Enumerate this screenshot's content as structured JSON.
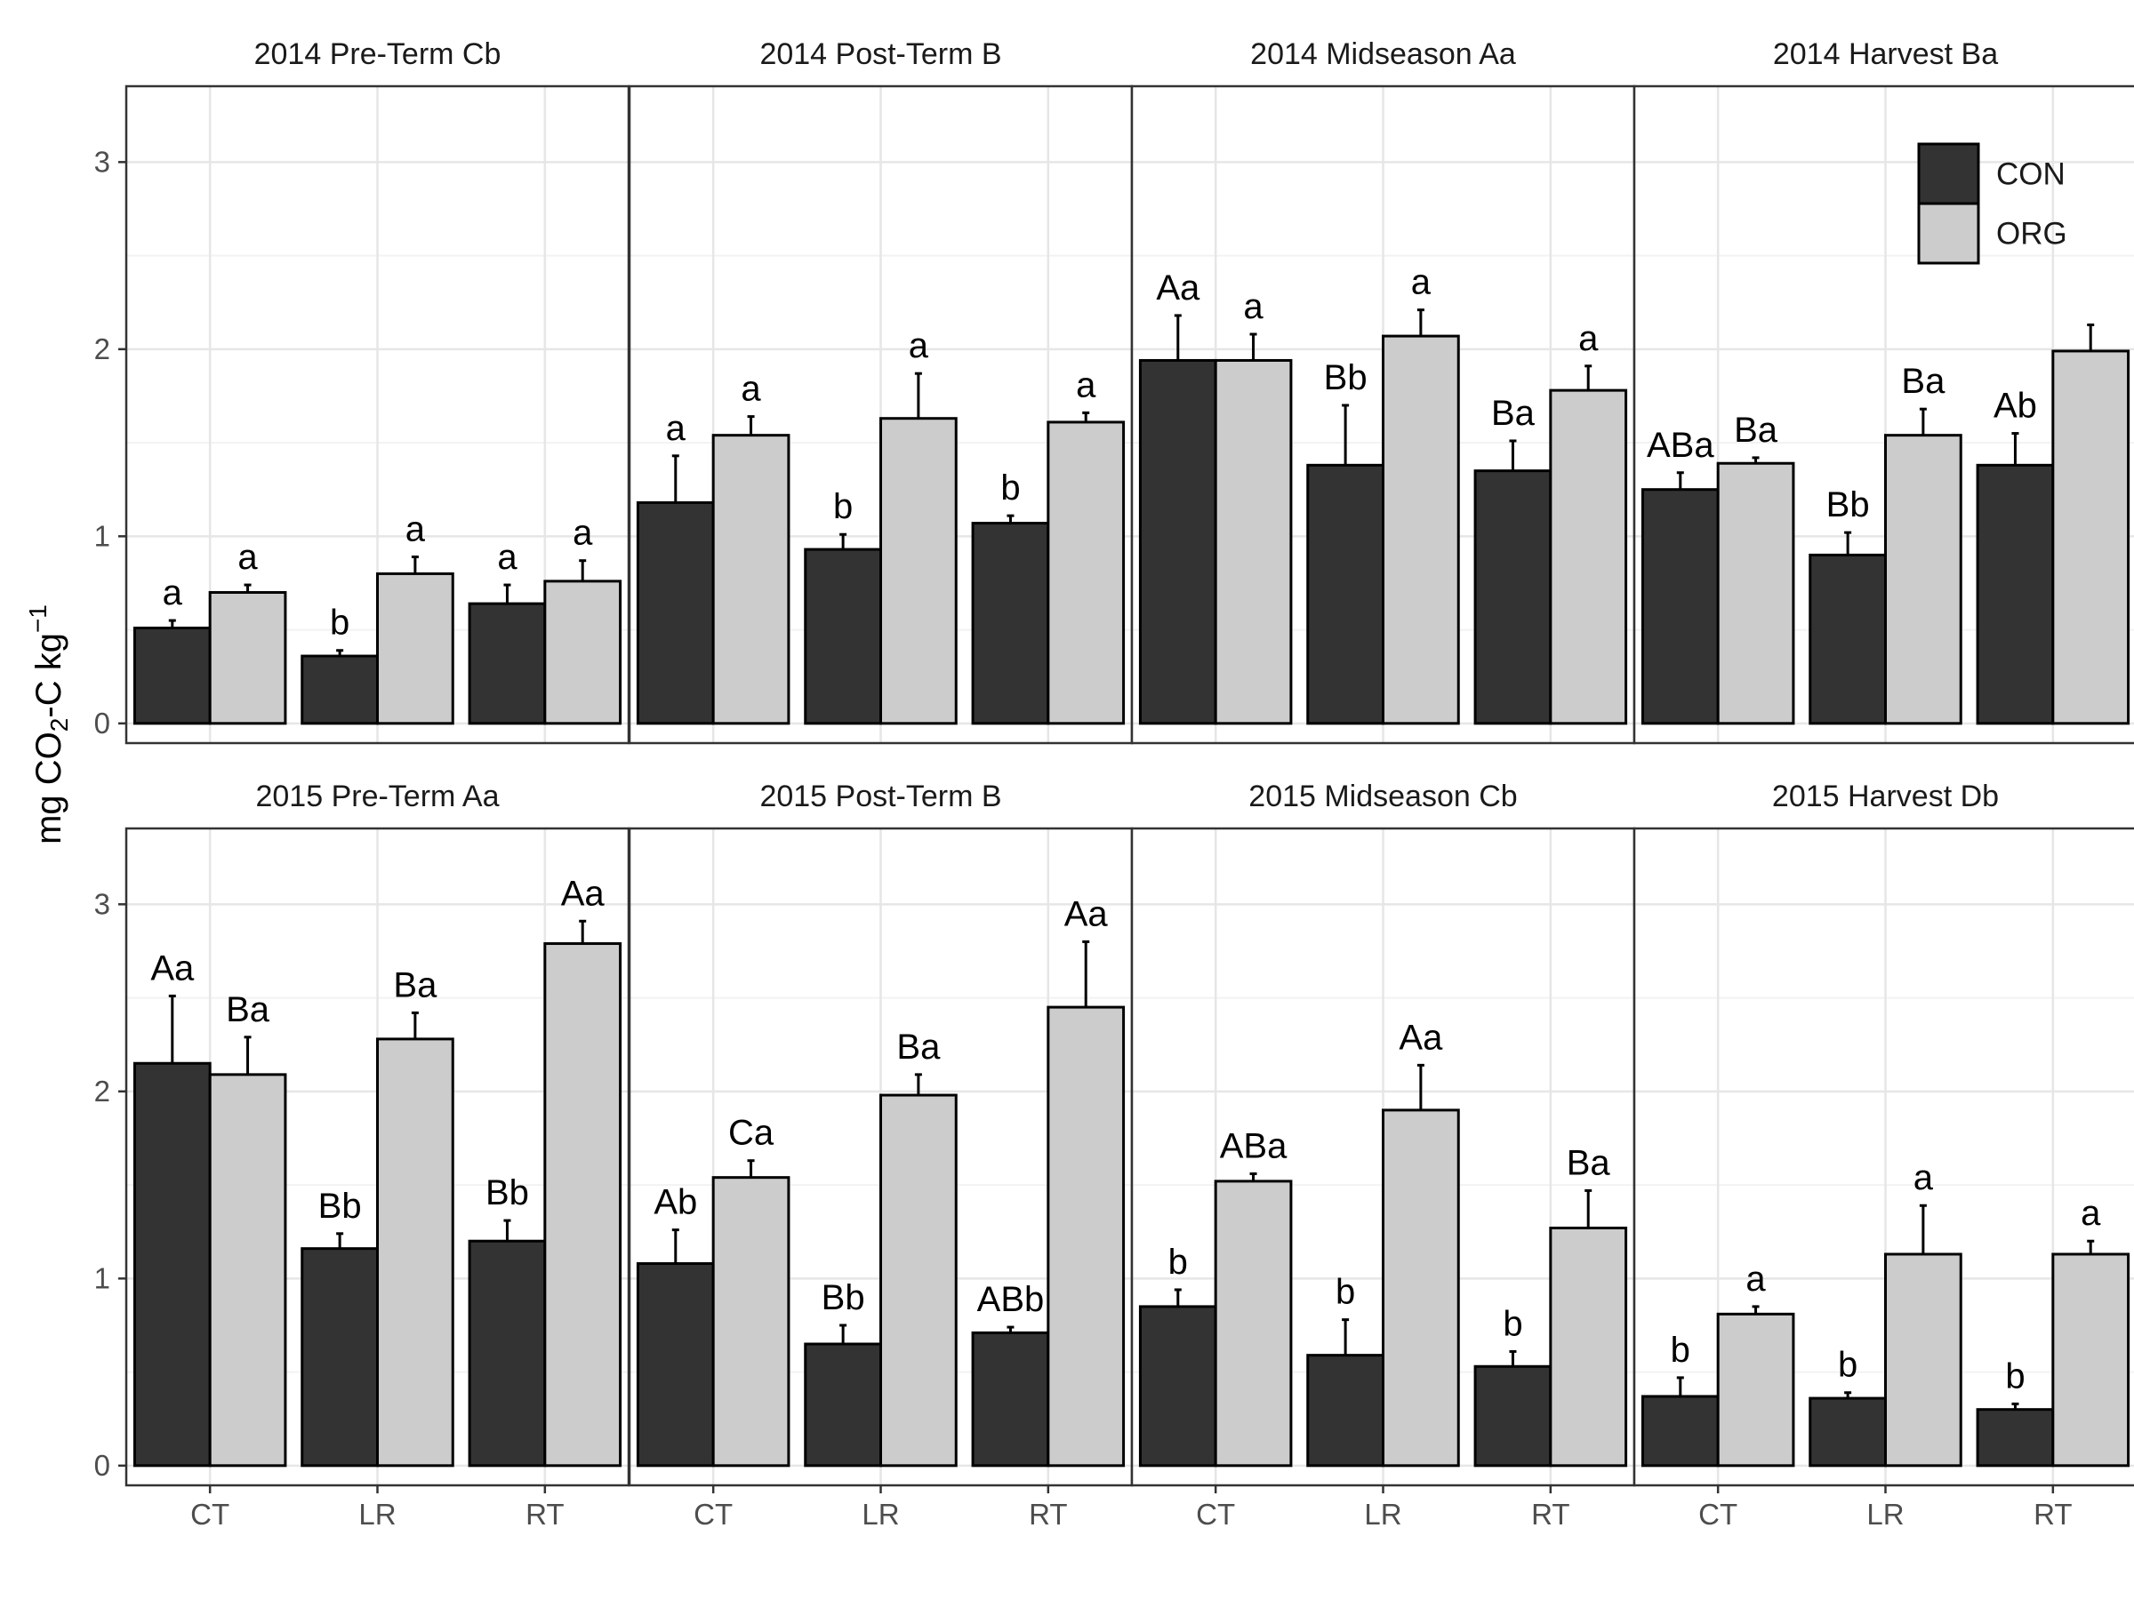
{
  "chart_data": {
    "type": "bar",
    "ylabel": "mg CO2-C kg-1",
    "ylabel_parts": {
      "pre": "mg CO",
      "sub": "2",
      "mid": "-C kg",
      "sup": "−1"
    },
    "ylim": [
      0,
      3.3
    ],
    "y_ticks": [
      "0",
      "1",
      "2",
      "3"
    ],
    "categories": [
      "CT",
      "LR",
      "RT"
    ],
    "legend": {
      "placement": "top-right of 2014 Harvest panel",
      "entries": [
        {
          "name": "CON",
          "color": "#333333"
        },
        {
          "name": "ORG",
          "color": "#cccccc"
        }
      ]
    },
    "grid": true,
    "panels": [
      {
        "title": "2014 Pre-Term Cb",
        "series": [
          {
            "name": "CON",
            "values": [
              0.51,
              0.36,
              0.64
            ],
            "errors": [
              0.04,
              0.03,
              0.1
            ],
            "labels": [
              "a",
              "b",
              "a"
            ]
          },
          {
            "name": "ORG",
            "values": [
              0.7,
              0.8,
              0.76
            ],
            "errors": [
              0.04,
              0.09,
              0.11
            ],
            "labels": [
              "a",
              "a",
              "a"
            ]
          }
        ]
      },
      {
        "title": "2014 Post-Term B",
        "series": [
          {
            "name": "CON",
            "values": [
              1.18,
              0.93,
              1.07
            ],
            "errors": [
              0.25,
              0.08,
              0.04
            ],
            "labels": [
              "a",
              "b",
              "b"
            ]
          },
          {
            "name": "ORG",
            "values": [
              1.54,
              1.63,
              1.61
            ],
            "errors": [
              0.1,
              0.24,
              0.05
            ],
            "labels": [
              "a",
              "a",
              "a"
            ]
          }
        ]
      },
      {
        "title": "2014 Midseason Aa",
        "series": [
          {
            "name": "CON",
            "values": [
              1.94,
              1.38,
              1.35
            ],
            "errors": [
              0.24,
              0.32,
              0.16
            ],
            "labels": [
              "Aa",
              "Bb",
              "Ba"
            ]
          },
          {
            "name": "ORG",
            "values": [
              1.94,
              2.07,
              1.78
            ],
            "errors": [
              0.14,
              0.14,
              0.13
            ],
            "labels": [
              "a",
              "a",
              "a"
            ]
          }
        ]
      },
      {
        "title": "2014 Harvest Ba",
        "series": [
          {
            "name": "CON",
            "values": [
              1.25,
              0.9,
              1.38
            ],
            "errors": [
              0.09,
              0.12,
              0.17
            ],
            "labels": [
              "ABa",
              "Bb",
              "Ab"
            ]
          },
          {
            "name": "ORG",
            "values": [
              1.39,
              1.54,
              1.99
            ],
            "errors": [
              0.03,
              0.14,
              0.14
            ],
            "labels": [
              "Ba",
              "Ba",
              ""
            ]
          }
        ]
      },
      {
        "title": "2015 Pre-Term Aa",
        "series": [
          {
            "name": "CON",
            "values": [
              2.15,
              1.16,
              1.2
            ],
            "errors": [
              0.36,
              0.08,
              0.11
            ],
            "labels": [
              "Aa",
              "Bb",
              "Bb"
            ]
          },
          {
            "name": "ORG",
            "values": [
              2.09,
              2.28,
              2.79
            ],
            "errors": [
              0.2,
              0.14,
              0.12
            ],
            "labels": [
              "Ba",
              "Ba",
              "Aa"
            ]
          }
        ]
      },
      {
        "title": "2015 Post-Term B",
        "series": [
          {
            "name": "CON",
            "values": [
              1.08,
              0.65,
              0.71
            ],
            "errors": [
              0.18,
              0.1,
              0.03
            ],
            "labels": [
              "Ab",
              "Bb",
              "ABb"
            ]
          },
          {
            "name": "ORG",
            "values": [
              1.54,
              1.98,
              2.45
            ],
            "errors": [
              0.09,
              0.11,
              0.35
            ],
            "labels": [
              "Ca",
              "Ba",
              "Aa"
            ]
          }
        ]
      },
      {
        "title": "2015 Midseason Cb",
        "series": [
          {
            "name": "CON",
            "values": [
              0.85,
              0.59,
              0.53
            ],
            "errors": [
              0.09,
              0.19,
              0.08
            ],
            "labels": [
              "b",
              "b",
              "b"
            ]
          },
          {
            "name": "ORG",
            "values": [
              1.52,
              1.9,
              1.27
            ],
            "errors": [
              0.04,
              0.24,
              0.2
            ],
            "labels": [
              "ABa",
              "Aa",
              "Ba"
            ]
          }
        ]
      },
      {
        "title": "2015 Harvest Db",
        "series": [
          {
            "name": "CON",
            "values": [
              0.37,
              0.36,
              0.3
            ],
            "errors": [
              0.1,
              0.03,
              0.03
            ],
            "labels": [
              "b",
              "b",
              "b"
            ]
          },
          {
            "name": "ORG",
            "values": [
              0.81,
              1.13,
              1.13
            ],
            "errors": [
              0.04,
              0.26,
              0.07
            ],
            "labels": [
              "a",
              "a",
              "a"
            ]
          }
        ]
      }
    ]
  }
}
